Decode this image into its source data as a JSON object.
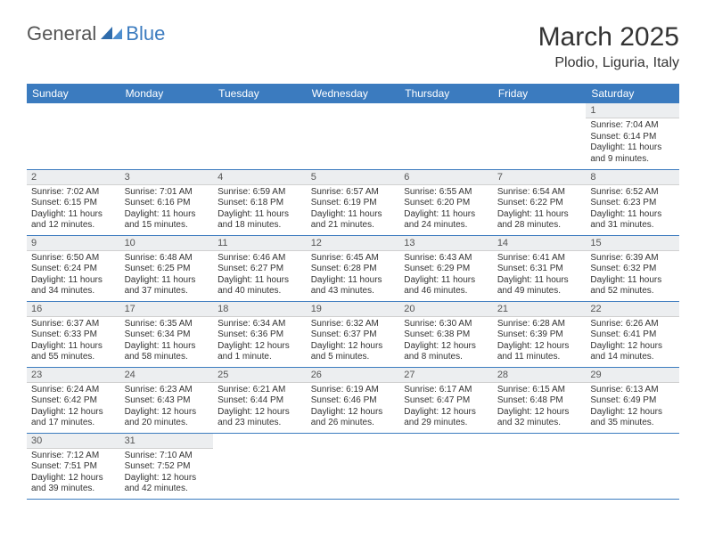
{
  "logo": {
    "text1": "General",
    "text2": "Blue"
  },
  "title": "March 2025",
  "location": "Plodio, Liguria, Italy",
  "colors": {
    "header_bg": "#3b7bbf",
    "header_fg": "#ffffff",
    "daynum_bg": "#eceef0",
    "border": "#3b7bbf"
  },
  "weekdays": [
    "Sunday",
    "Monday",
    "Tuesday",
    "Wednesday",
    "Thursday",
    "Friday",
    "Saturday"
  ],
  "weeks": [
    [
      null,
      null,
      null,
      null,
      null,
      null,
      {
        "n": "1",
        "sr": "Sunrise: 7:04 AM",
        "ss": "Sunset: 6:14 PM",
        "dl": "Daylight: 11 hours and 9 minutes."
      }
    ],
    [
      {
        "n": "2",
        "sr": "Sunrise: 7:02 AM",
        "ss": "Sunset: 6:15 PM",
        "dl": "Daylight: 11 hours and 12 minutes."
      },
      {
        "n": "3",
        "sr": "Sunrise: 7:01 AM",
        "ss": "Sunset: 6:16 PM",
        "dl": "Daylight: 11 hours and 15 minutes."
      },
      {
        "n": "4",
        "sr": "Sunrise: 6:59 AM",
        "ss": "Sunset: 6:18 PM",
        "dl": "Daylight: 11 hours and 18 minutes."
      },
      {
        "n": "5",
        "sr": "Sunrise: 6:57 AM",
        "ss": "Sunset: 6:19 PM",
        "dl": "Daylight: 11 hours and 21 minutes."
      },
      {
        "n": "6",
        "sr": "Sunrise: 6:55 AM",
        "ss": "Sunset: 6:20 PM",
        "dl": "Daylight: 11 hours and 24 minutes."
      },
      {
        "n": "7",
        "sr": "Sunrise: 6:54 AM",
        "ss": "Sunset: 6:22 PM",
        "dl": "Daylight: 11 hours and 28 minutes."
      },
      {
        "n": "8",
        "sr": "Sunrise: 6:52 AM",
        "ss": "Sunset: 6:23 PM",
        "dl": "Daylight: 11 hours and 31 minutes."
      }
    ],
    [
      {
        "n": "9",
        "sr": "Sunrise: 6:50 AM",
        "ss": "Sunset: 6:24 PM",
        "dl": "Daylight: 11 hours and 34 minutes."
      },
      {
        "n": "10",
        "sr": "Sunrise: 6:48 AM",
        "ss": "Sunset: 6:25 PM",
        "dl": "Daylight: 11 hours and 37 minutes."
      },
      {
        "n": "11",
        "sr": "Sunrise: 6:46 AM",
        "ss": "Sunset: 6:27 PM",
        "dl": "Daylight: 11 hours and 40 minutes."
      },
      {
        "n": "12",
        "sr": "Sunrise: 6:45 AM",
        "ss": "Sunset: 6:28 PM",
        "dl": "Daylight: 11 hours and 43 minutes."
      },
      {
        "n": "13",
        "sr": "Sunrise: 6:43 AM",
        "ss": "Sunset: 6:29 PM",
        "dl": "Daylight: 11 hours and 46 minutes."
      },
      {
        "n": "14",
        "sr": "Sunrise: 6:41 AM",
        "ss": "Sunset: 6:31 PM",
        "dl": "Daylight: 11 hours and 49 minutes."
      },
      {
        "n": "15",
        "sr": "Sunrise: 6:39 AM",
        "ss": "Sunset: 6:32 PM",
        "dl": "Daylight: 11 hours and 52 minutes."
      }
    ],
    [
      {
        "n": "16",
        "sr": "Sunrise: 6:37 AM",
        "ss": "Sunset: 6:33 PM",
        "dl": "Daylight: 11 hours and 55 minutes."
      },
      {
        "n": "17",
        "sr": "Sunrise: 6:35 AM",
        "ss": "Sunset: 6:34 PM",
        "dl": "Daylight: 11 hours and 58 minutes."
      },
      {
        "n": "18",
        "sr": "Sunrise: 6:34 AM",
        "ss": "Sunset: 6:36 PM",
        "dl": "Daylight: 12 hours and 1 minute."
      },
      {
        "n": "19",
        "sr": "Sunrise: 6:32 AM",
        "ss": "Sunset: 6:37 PM",
        "dl": "Daylight: 12 hours and 5 minutes."
      },
      {
        "n": "20",
        "sr": "Sunrise: 6:30 AM",
        "ss": "Sunset: 6:38 PM",
        "dl": "Daylight: 12 hours and 8 minutes."
      },
      {
        "n": "21",
        "sr": "Sunrise: 6:28 AM",
        "ss": "Sunset: 6:39 PM",
        "dl": "Daylight: 12 hours and 11 minutes."
      },
      {
        "n": "22",
        "sr": "Sunrise: 6:26 AM",
        "ss": "Sunset: 6:41 PM",
        "dl": "Daylight: 12 hours and 14 minutes."
      }
    ],
    [
      {
        "n": "23",
        "sr": "Sunrise: 6:24 AM",
        "ss": "Sunset: 6:42 PM",
        "dl": "Daylight: 12 hours and 17 minutes."
      },
      {
        "n": "24",
        "sr": "Sunrise: 6:23 AM",
        "ss": "Sunset: 6:43 PM",
        "dl": "Daylight: 12 hours and 20 minutes."
      },
      {
        "n": "25",
        "sr": "Sunrise: 6:21 AM",
        "ss": "Sunset: 6:44 PM",
        "dl": "Daylight: 12 hours and 23 minutes."
      },
      {
        "n": "26",
        "sr": "Sunrise: 6:19 AM",
        "ss": "Sunset: 6:46 PM",
        "dl": "Daylight: 12 hours and 26 minutes."
      },
      {
        "n": "27",
        "sr": "Sunrise: 6:17 AM",
        "ss": "Sunset: 6:47 PM",
        "dl": "Daylight: 12 hours and 29 minutes."
      },
      {
        "n": "28",
        "sr": "Sunrise: 6:15 AM",
        "ss": "Sunset: 6:48 PM",
        "dl": "Daylight: 12 hours and 32 minutes."
      },
      {
        "n": "29",
        "sr": "Sunrise: 6:13 AM",
        "ss": "Sunset: 6:49 PM",
        "dl": "Daylight: 12 hours and 35 minutes."
      }
    ],
    [
      {
        "n": "30",
        "sr": "Sunrise: 7:12 AM",
        "ss": "Sunset: 7:51 PM",
        "dl": "Daylight: 12 hours and 39 minutes."
      },
      {
        "n": "31",
        "sr": "Sunrise: 7:10 AM",
        "ss": "Sunset: 7:52 PM",
        "dl": "Daylight: 12 hours and 42 minutes."
      },
      null,
      null,
      null,
      null,
      null
    ]
  ]
}
